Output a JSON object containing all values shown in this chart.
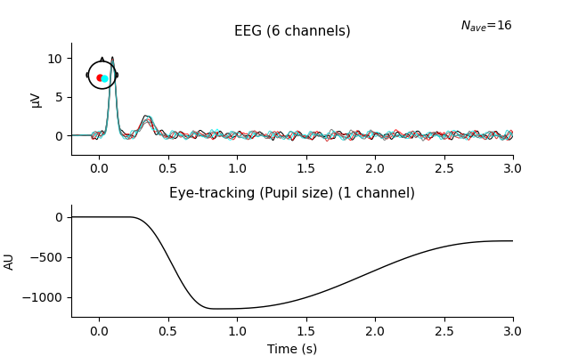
{
  "title_eeg": "EEG (6 channels)",
  "title_eye": "Eye-tracking (Pupil size) (1 channel)",
  "xlabel": "Time (s)",
  "ylabel_eeg": "μV",
  "ylabel_eye": "AU",
  "xlim": [
    -0.2,
    3.0
  ],
  "eeg_ylim": [
    -2.5,
    12
  ],
  "eye_ylim": [
    -1250,
    150
  ],
  "eeg_yticks": [
    0,
    5,
    10
  ],
  "eye_yticks": [
    -1000,
    -500,
    0
  ],
  "xticks": [
    0.0,
    0.5,
    1.0,
    1.5,
    2.0,
    2.5,
    3.0
  ],
  "line_colors": [
    "black",
    "red",
    "cyan",
    "#cc0000",
    "#555555",
    "#00cccc"
  ],
  "line_alphas": [
    1.0,
    0.85,
    0.85,
    0.75,
    0.75,
    0.75
  ],
  "eye_color": "black",
  "background": "white",
  "seed": 42,
  "nave_label": "$N_{ave}$=16"
}
